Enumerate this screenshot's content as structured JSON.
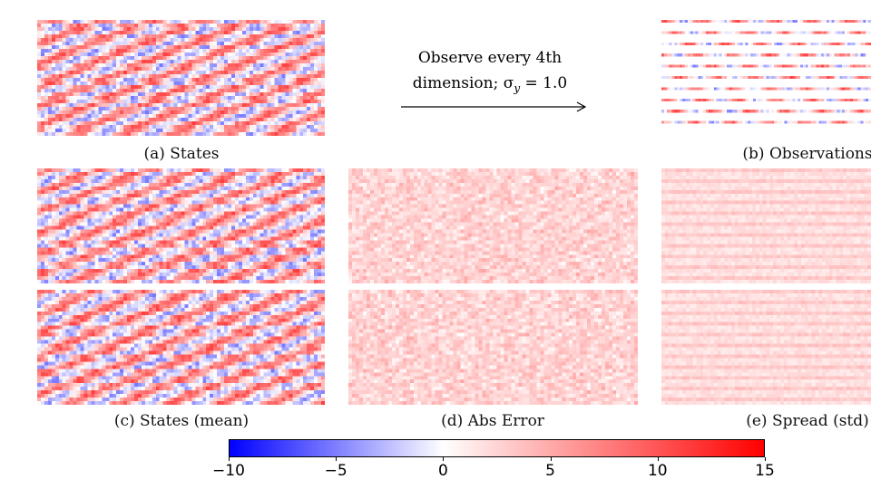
{
  "arrow": {
    "line1": "Observe every 4th",
    "line2": "dimension; σ",
    "subscript": "y",
    "line2_tail": " = 1.0"
  },
  "panels": {
    "a": {
      "caption": "(a) States"
    },
    "b": {
      "caption": "(b) Observations"
    },
    "c": {
      "caption": "(c) States (mean)"
    },
    "d": {
      "caption": "(d) Abs Error"
    },
    "e": {
      "caption": "(e) Spread (std)"
    }
  },
  "colorbar": {
    "min": -10,
    "max": 15,
    "colormap": "bwr",
    "ticks": [
      "−10",
      "−5",
      "0",
      "5",
      "10",
      "15"
    ],
    "tick_values": [
      -10,
      -5,
      0,
      5,
      10,
      15
    ]
  },
  "colors": {
    "negative": "#0000ff",
    "zero": "#ffffff",
    "positive": "#ff0000"
  }
}
